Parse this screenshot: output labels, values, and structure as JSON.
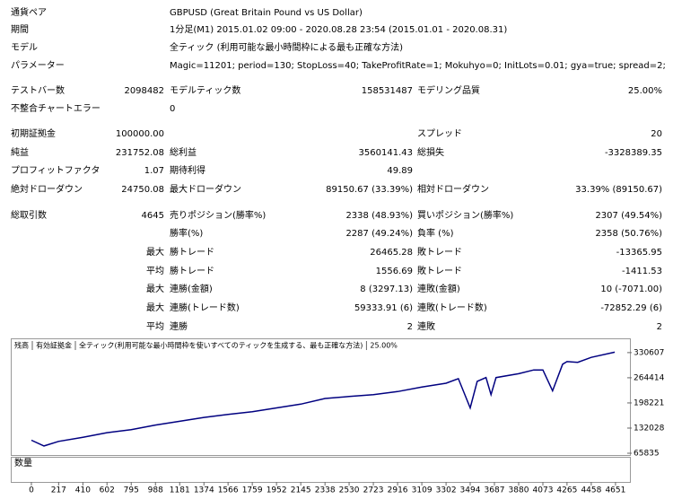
{
  "report": {
    "rows": [
      [
        {
          "label": "通貨ペア",
          "value": "GBPUSD (Great Britain Pound vs US Dollar)"
        }
      ],
      [
        {
          "label": "期間",
          "value": "1分足(M1) 2015.01.02 09:00 - 2020.08.28 23:54 (2015.01.01 - 2020.08.31)"
        }
      ],
      [
        {
          "label": "モデル",
          "value": "全ティック (利用可能な最小時間枠による最も正確な方法)"
        }
      ],
      [
        {
          "label": "パラメーター",
          "value": "Magic=11201; period=130; StopLoss=40; TakeProfitRate=1; Mokuhyo=0; InitLots=0.01; gya=true; spread=2;"
        }
      ],
      [
        {
          "label": "テストバー数",
          "value": "2098482"
        },
        {
          "label": "モデルティック数",
          "value": "158531487"
        },
        {
          "label": "モデリング品質",
          "value": "25.00%"
        }
      ],
      [
        {
          "label": "不整合チャートエラー",
          "value": "0"
        }
      ],
      [
        {
          "label": "初期証拠金",
          "value": "100000.00"
        },
        null,
        {
          "label": "スプレッド",
          "value": "20"
        }
      ],
      [
        {
          "label": "純益",
          "value": "231752.08"
        },
        {
          "label": "総利益",
          "value": "3560141.43"
        },
        {
          "label": "総損失",
          "value": "-3328389.35"
        }
      ],
      [
        {
          "label": "プロフィットファクタ",
          "value": "1.07"
        },
        {
          "label": "期待利得",
          "value": "49.89"
        }
      ],
      [
        {
          "label": "絶対ドローダウン",
          "value": "24750.08"
        },
        {
          "label": "最大ドローダウン",
          "value": "89150.67 (33.39%)"
        },
        {
          "label": "相対ドローダウン",
          "value": "33.39% (89150.67)"
        }
      ],
      [
        {
          "label": "総取引数",
          "value": "4645"
        },
        {
          "label": "売りポジション(勝率%)",
          "value": "2338 (48.93%)"
        },
        {
          "label": "買いポジション(勝率%)",
          "value": "2307 (49.54%)"
        }
      ],
      [
        null,
        {
          "label": "勝率(%)",
          "value": "2287 (49.24%)"
        },
        {
          "label": "負率 (%)",
          "value": "2358 (50.76%)"
        }
      ],
      [
        {
          "value": "最大"
        },
        {
          "label": "勝トレード",
          "value": "26465.28"
        },
        {
          "label": "敗トレード",
          "value": "-13365.95"
        }
      ],
      [
        {
          "value": "平均"
        },
        {
          "label": "勝トレード",
          "value": "1556.69"
        },
        {
          "label": "敗トレード",
          "value": "-1411.53"
        }
      ],
      [
        {
          "value": "最大"
        },
        {
          "label": "連勝(金額)",
          "value": "8 (3297.13)"
        },
        {
          "label": "連敗(金額)",
          "value": "10 (-7071.00)"
        }
      ],
      [
        {
          "value": "最大"
        },
        {
          "label": "連勝(トレード数)",
          "value": "59333.91 (6)"
        },
        {
          "label": "連敗(トレード数)",
          "value": "-72852.29 (6)"
        }
      ],
      [
        {
          "value": "平均"
        },
        {
          "label": "連勝",
          "value": "2"
        },
        {
          "label": "連敗",
          "value": "2"
        }
      ]
    ]
  },
  "chart_data": {
    "type": "line",
    "legend": [
      {
        "text": "残高",
        "color": "#0000c0"
      },
      {
        "text": "有効証拠金",
        "color": "#00a000"
      },
      {
        "text": "全ティック(利用可能な最小時間枠を使いすべてのティックを生成する、最も正確な方法)",
        "color": "#000000"
      },
      {
        "text": "25.00%",
        "color": "#000000"
      }
    ],
    "volume_label": "数量",
    "x": [
      0,
      100,
      217,
      410,
      602,
      795,
      988,
      1181,
      1374,
      1566,
      1759,
      1952,
      2145,
      2338,
      2530,
      2723,
      2916,
      3109,
      3302,
      3400,
      3494,
      3550,
      3620,
      3660,
      3700,
      3880,
      4000,
      4073,
      4150,
      4230,
      4265,
      4350,
      4458,
      4645
    ],
    "series": [
      {
        "name": "残高",
        "color": "#000080",
        "values": [
          100000,
          85000,
          97000,
          108000,
          120000,
          128000,
          140000,
          150000,
          160000,
          168000,
          175000,
          185000,
          195000,
          210000,
          215000,
          220000,
          228000,
          240000,
          250000,
          262000,
          185000,
          255000,
          265000,
          220000,
          265000,
          275000,
          285000,
          285000,
          230000,
          300000,
          307000,
          305000,
          318000,
          331752
        ]
      }
    ],
    "xlim": [
      -157,
      4766
    ],
    "ylim": [
      61149,
      365752
    ],
    "xticks": [
      0,
      217,
      410,
      602,
      795,
      988,
      1181,
      1374,
      1566,
      1759,
      1952,
      2145,
      2338,
      2530,
      2723,
      2916,
      3109,
      3302,
      3494,
      3687,
      3880,
      4073,
      4265,
      4458,
      4651
    ],
    "yticks": [
      65835,
      132028,
      198221,
      264414,
      330607
    ]
  }
}
